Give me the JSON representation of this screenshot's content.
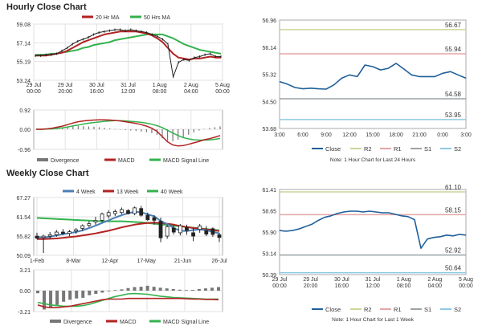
{
  "hourly_title": "Hourly Close Chart",
  "weekly_title": "Weekly Close Chart",
  "colors": {
    "red": "#b22222",
    "green": "#33b24d",
    "blue": "#4a7fb5",
    "close": "#1f5f9a",
    "r2": "#c9d79a",
    "r1": "#e5a5a5",
    "s1": "#9aa3a8",
    "s2": "#8ec9e4",
    "gray": "#777777"
  },
  "chart_data": [
    {
      "id": "hourly-price",
      "type": "line",
      "title": "Hourly Close Chart",
      "yticks": [
        59.08,
        57.14,
        55.19,
        53.24
      ],
      "ylim": [
        53.24,
        59.08
      ],
      "xticks": [
        [
          "29 Jul",
          "00:00"
        ],
        [
          "29 Jul",
          "20:00"
        ],
        [
          "30 Jul",
          "16:00"
        ],
        [
          "31 Jul",
          "12:00"
        ],
        [
          "1 Aug",
          "08:00"
        ],
        [
          "2 Aug",
          "04:00"
        ],
        [
          "5 Aug",
          "00:00"
        ]
      ],
      "legend": [
        {
          "name": "20 Hr MA",
          "color": "red"
        },
        {
          "name": "50 Hrs MA",
          "color": "green"
        }
      ],
      "series": {
        "close": [
          55.8,
          55.8,
          55.9,
          55.9,
          56.0,
          56.3,
          56.6,
          57.0,
          57.3,
          57.5,
          57.7,
          58.0,
          58.2,
          58.3,
          58.4,
          58.5,
          58.5,
          58.4,
          58.5,
          58.4,
          58.3,
          58.2,
          58.0,
          57.8,
          57.5,
          57.0,
          53.6,
          55.1,
          55.4,
          55.3,
          55.6,
          55.7,
          55.9,
          56.0,
          55.7,
          55.7
        ],
        "ma20": [
          55.8,
          55.8,
          55.8,
          55.9,
          56.0,
          56.1,
          56.3,
          56.6,
          56.9,
          57.2,
          57.4,
          57.6,
          57.8,
          58.0,
          58.1,
          58.2,
          58.3,
          58.3,
          58.3,
          58.3,
          58.2,
          58.1,
          57.9,
          57.6,
          57.2,
          56.6,
          56.0,
          55.6,
          55.5,
          55.4,
          55.5,
          55.5,
          55.6,
          55.7,
          55.6,
          55.6
        ],
        "ma50": [
          55.9,
          55.9,
          55.9,
          56.0,
          56.0,
          56.1,
          56.2,
          56.3,
          56.4,
          56.6,
          56.7,
          56.9,
          57.0,
          57.1,
          57.2,
          57.4,
          57.5,
          57.6,
          57.7,
          57.8,
          57.9,
          58.0,
          58.0,
          58.0,
          58.0,
          57.8,
          57.6,
          57.3,
          57.0,
          56.8,
          56.6,
          56.4,
          56.3,
          56.2,
          56.1,
          56.0
        ]
      }
    },
    {
      "id": "hourly-macd",
      "type": "line+bar",
      "yticks": [
        0.92,
        0.0,
        -0.96
      ],
      "ylim": [
        -0.96,
        0.92
      ],
      "legend": [
        {
          "name": "Divergence",
          "color": "gray"
        },
        {
          "name": "MACD",
          "color": "red"
        },
        {
          "name": "MACD Signal Line",
          "color": "green"
        }
      ],
      "series": {
        "macd": [
          0.0,
          0.0,
          0.02,
          0.05,
          0.1,
          0.15,
          0.22,
          0.3,
          0.36,
          0.4,
          0.42,
          0.44,
          0.45,
          0.45,
          0.44,
          0.42,
          0.4,
          0.36,
          0.32,
          0.28,
          0.22,
          0.15,
          0.05,
          -0.1,
          -0.35,
          -0.6,
          -0.75,
          -0.8,
          -0.78,
          -0.72,
          -0.65,
          -0.58,
          -0.5,
          -0.45,
          -0.38,
          -0.3
        ],
        "signal": [
          0.0,
          0.0,
          0.01,
          0.02,
          0.04,
          0.07,
          0.11,
          0.16,
          0.2,
          0.25,
          0.29,
          0.32,
          0.35,
          0.38,
          0.4,
          0.41,
          0.41,
          0.4,
          0.38,
          0.36,
          0.33,
          0.29,
          0.24,
          0.17,
          0.08,
          -0.05,
          -0.18,
          -0.3,
          -0.4,
          -0.46,
          -0.5,
          -0.52,
          -0.52,
          -0.51,
          -0.48,
          -0.44
        ],
        "divergence": [
          0.0,
          0.0,
          0.01,
          0.03,
          0.06,
          0.08,
          0.11,
          0.14,
          0.16,
          0.15,
          0.13,
          0.12,
          0.1,
          0.07,
          0.04,
          0.01,
          -0.01,
          -0.04,
          -0.06,
          -0.08,
          -0.11,
          -0.14,
          -0.19,
          -0.27,
          -0.43,
          -0.55,
          -0.57,
          -0.5,
          -0.38,
          -0.26,
          -0.15,
          -0.06,
          0.02,
          0.06,
          0.1,
          0.14
        ]
      }
    },
    {
      "id": "hourly-levels",
      "type": "line",
      "yticks": [
        56.96,
        56.14,
        55.32,
        54.5,
        53.68
      ],
      "ylim": [
        53.68,
        56.96
      ],
      "xticks": [
        "3:00",
        "6:00",
        "9:00",
        "12:00",
        "15:00",
        "18:00",
        "21:00",
        "0:00",
        "3:00"
      ],
      "levels": [
        {
          "name": "R2",
          "value": 56.67,
          "color": "r2"
        },
        {
          "name": "R1",
          "value": 55.94,
          "color": "r1"
        },
        {
          "name": "S1",
          "value": 54.58,
          "color": "s1"
        },
        {
          "name": "S2",
          "value": 53.95,
          "color": "s2"
        }
      ],
      "close": [
        55.1,
        55.02,
        54.92,
        54.88,
        54.9,
        54.88,
        54.87,
        55.0,
        55.2,
        55.3,
        55.25,
        55.6,
        55.55,
        55.45,
        55.5,
        55.65,
        55.48,
        55.3,
        55.25,
        55.25,
        55.25,
        55.35,
        55.4,
        55.3,
        55.2
      ],
      "legend": [
        "Close",
        "R2",
        "R1",
        "S1",
        "S2"
      ],
      "note": "Note: 1 Hour Chart for Last 24 Hours"
    },
    {
      "id": "weekly-price",
      "type": "candlestick+line",
      "title": "Weekly Close Chart",
      "yticks": [
        67.27,
        61.54,
        55.82,
        50.09
      ],
      "ylim": [
        50.09,
        67.27
      ],
      "xticks": [
        "1-Feb",
        "8-Mar",
        "12-Apr",
        "17-May",
        "21-Jun",
        "26-Jul"
      ],
      "legend": [
        {
          "name": "4 Week",
          "color": "blue"
        },
        {
          "name": "13 Week",
          "color": "red"
        },
        {
          "name": "40 Week",
          "color": "green"
        }
      ],
      "ohlc": [
        [
          55.8,
          56.8,
          54.9,
          55.2
        ],
        [
          55.4,
          56.2,
          50.8,
          55.8
        ],
        [
          55.8,
          57.0,
          55.0,
          56.2
        ],
        [
          56.2,
          57.6,
          55.6,
          57.0
        ],
        [
          57.0,
          57.9,
          56.1,
          56.6
        ],
        [
          56.6,
          57.6,
          55.8,
          57.1
        ],
        [
          57.3,
          58.2,
          56.5,
          57.7
        ],
        [
          58.1,
          59.3,
          57.3,
          58.9
        ],
        [
          59.0,
          60.2,
          58.5,
          59.5
        ],
        [
          60.0,
          61.5,
          59.2,
          60.4
        ],
        [
          60.5,
          62.8,
          60.0,
          62.4
        ],
        [
          61.8,
          63.5,
          61.0,
          62.8
        ],
        [
          62.5,
          63.7,
          61.8,
          63.1
        ],
        [
          62.8,
          64.3,
          62.3,
          63.7
        ],
        [
          63.4,
          63.8,
          62.2,
          62.5
        ],
        [
          62.5,
          64.6,
          62.0,
          64.2
        ],
        [
          64.0,
          64.8,
          61.6,
          62.0
        ],
        [
          62.0,
          62.8,
          60.3,
          60.7
        ],
        [
          61.3,
          62.0,
          59.2,
          60.5
        ],
        [
          60.2,
          61.3,
          54.0,
          55.3
        ],
        [
          55.8,
          59.2,
          55.0,
          58.6
        ],
        [
          58.2,
          59.0,
          56.3,
          57.0
        ],
        [
          56.8,
          59.4,
          56.0,
          58.9
        ],
        [
          58.3,
          59.2,
          56.2,
          57.5
        ],
        [
          56.8,
          58.2,
          54.3,
          55.8
        ],
        [
          57.8,
          59.4,
          56.8,
          58.8
        ],
        [
          57.4,
          58.8,
          55.8,
          56.4
        ],
        [
          58.0,
          58.4,
          55.6,
          56.3
        ],
        [
          56.2,
          56.8,
          54.1,
          55.4
        ]
      ],
      "wk4": [
        55.5,
        55.4,
        55.6,
        56.0,
        56.4,
        56.7,
        57.0,
        57.5,
        58.2,
        58.9,
        59.7,
        60.5,
        61.3,
        62.0,
        62.6,
        63.0,
        62.9,
        62.3,
        61.7,
        60.3,
        59.4,
        58.2,
        57.4,
        57.3,
        57.6,
        57.8,
        57.5,
        57.1,
        56.6
      ],
      "wk13": [
        54.9,
        54.9,
        55.0,
        55.1,
        55.3,
        55.5,
        55.7,
        56.0,
        56.3,
        56.6,
        57.0,
        57.4,
        57.9,
        58.4,
        58.8,
        59.2,
        59.5,
        59.7,
        59.8,
        59.7,
        59.5,
        59.2,
        58.8,
        58.5,
        58.2,
        58.0,
        57.8,
        57.6,
        57.3
      ],
      "wk40": [
        61.2,
        61.1,
        61.0,
        60.9,
        60.8,
        60.7,
        60.6,
        60.5,
        60.4,
        60.3,
        60.2,
        60.2,
        60.2,
        60.2,
        60.1,
        60.0,
        59.9,
        59.7,
        59.5,
        59.3,
        59.1,
        58.9,
        58.7,
        58.5,
        58.3,
        58.1,
        57.9,
        57.7,
        57.5
      ]
    },
    {
      "id": "weekly-macd",
      "type": "line+bar",
      "yticks": [
        3.21,
        0.0,
        -3.21
      ],
      "ylim": [
        -3.21,
        3.21
      ],
      "legend": [
        {
          "name": "Divergence",
          "color": "gray"
        },
        {
          "name": "MACD",
          "color": "red"
        },
        {
          "name": "MACD Signal Line",
          "color": "green"
        }
      ],
      "series": {
        "macd": [
          -2.2,
          -2.5,
          -2.6,
          -2.6,
          -2.5,
          -2.4,
          -2.2,
          -2.0,
          -1.8,
          -1.6,
          -1.4,
          -1.3,
          -1.3,
          -1.3,
          -1.2,
          -1.2,
          -1.2,
          -1.2,
          -1.2,
          -1.2,
          -1.2,
          -1.2,
          -1.2,
          -1.25,
          -1.3,
          -1.3,
          -1.35,
          -1.35,
          -1.4
        ],
        "signal": [
          -1.8,
          -2.0,
          -2.2,
          -2.3,
          -2.4,
          -2.4,
          -2.4,
          -2.3,
          -2.1,
          -1.8,
          -1.5,
          -1.2,
          -0.9,
          -0.7,
          -0.5,
          -0.45,
          -0.5,
          -0.55,
          -0.7,
          -0.85,
          -0.95,
          -1.05,
          -1.1,
          -1.15,
          -1.2,
          -1.25,
          -1.3,
          -1.3,
          -1.3
        ],
        "divergence": [
          -0.4,
          -2.9,
          -2.6,
          -2.2,
          -1.7,
          -1.4,
          -1.2,
          -1.1,
          -0.7,
          -0.5,
          -0.3,
          -0.1,
          0.1,
          0.2,
          0.4,
          0.55,
          0.6,
          0.75,
          0.6,
          0.45,
          0.35,
          0.25,
          0.15,
          0.1,
          0.12,
          0.25,
          0.35,
          0.45,
          0.55
        ]
      }
    },
    {
      "id": "weekly-levels",
      "type": "line",
      "yticks": [
        61.41,
        58.65,
        55.9,
        53.14,
        50.39
      ],
      "ylim": [
        50.39,
        61.41
      ],
      "xticks": [
        [
          "29 Jul",
          "00:00"
        ],
        [
          "29 Jul",
          "20:00"
        ],
        [
          "30 Jul",
          "16:00"
        ],
        [
          "31 Jul",
          "12:00"
        ],
        [
          "1 Aug",
          "08:00"
        ],
        [
          "2 Aug",
          "04:00"
        ],
        [
          "5 Aug",
          "00:00"
        ]
      ],
      "levels": [
        {
          "name": "R2",
          "value": 61.1,
          "color": "r2"
        },
        {
          "name": "R1",
          "value": 58.15,
          "color": "r1"
        },
        {
          "name": "S1",
          "value": 52.92,
          "color": "s1"
        },
        {
          "name": "S2",
          "value": 50.64,
          "color": "s2"
        }
      ],
      "close": [
        56.1,
        56.0,
        56.1,
        56.3,
        56.6,
        56.9,
        57.4,
        57.8,
        58.0,
        58.3,
        58.5,
        58.6,
        58.6,
        58.5,
        58.6,
        58.5,
        58.4,
        58.4,
        58.2,
        58.0,
        57.9,
        57.5,
        53.8,
        55.0,
        55.2,
        55.3,
        55.5,
        55.4,
        55.6,
        55.5
      ],
      "legend": [
        "Close",
        "R2",
        "R1",
        "S1",
        "S2"
      ],
      "note": "Note: 1 Hour Chart for Last 1 Week"
    }
  ]
}
